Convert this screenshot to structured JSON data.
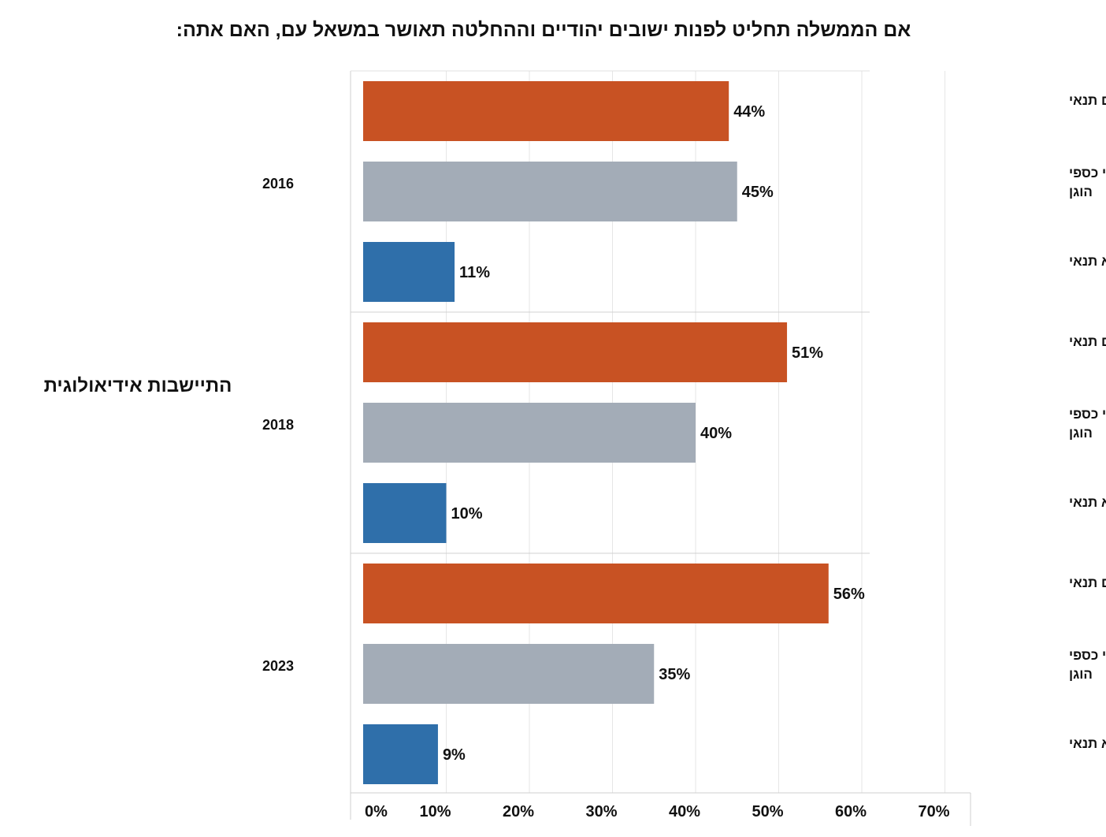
{
  "chart_data": {
    "type": "bar",
    "orientation": "horizontal",
    "title": "אם הממשלה תחליט לפנות ישובים יהודיים וההחלטה תאושר במשאל עם, האם אתה:",
    "group_title": "התיישבות אידיאולוגית",
    "xlim": [
      0,
      70
    ],
    "x_ticks": [
      "0%",
      "10%",
      "20%",
      "30%",
      "40%",
      "50%",
      "60%",
      "70%"
    ],
    "grid": true,
    "groups": [
      {
        "year": "2016",
        "bars": [
          {
            "category": [
              "לא אתפנה בשום תנאי"
            ],
            "value": 44,
            "label": "44%",
            "color": "#c85223"
          },
          {
            "category": [
              "אתפנה רק עם פיצוי כספי",
              "הוגן"
            ],
            "value": 45,
            "label": "45%",
            "color": "#a3acb7"
          },
          {
            "category": [
              "אתפנה ללא תנאי"
            ],
            "value": 11,
            "label": "11%",
            "color": "#2f6faa"
          }
        ]
      },
      {
        "year": "2018",
        "bars": [
          {
            "category": [
              "לא אתפנה בשום תנאי"
            ],
            "value": 51,
            "label": "51%",
            "color": "#c85223"
          },
          {
            "category": [
              "אתפנה רק עם פיצוי כספי",
              "הוגן"
            ],
            "value": 40,
            "label": "40%",
            "color": "#a3acb7"
          },
          {
            "category": [
              "אתפנה ללא תנאי"
            ],
            "value": 10,
            "label": "10%",
            "color": "#2f6faa"
          }
        ]
      },
      {
        "year": "2023",
        "bars": [
          {
            "category": [
              "לא אתפנה בשום תנאי"
            ],
            "value": 56,
            "label": "56%",
            "color": "#c85223"
          },
          {
            "category": [
              "אתפנה רק עם פיצוי כספי",
              "הוגן"
            ],
            "value": 35,
            "label": "35%",
            "color": "#a3acb7"
          },
          {
            "category": [
              "אתפנה ללא תנאי"
            ],
            "value": 9,
            "label": "9%",
            "color": "#2f6faa"
          }
        ]
      }
    ]
  }
}
